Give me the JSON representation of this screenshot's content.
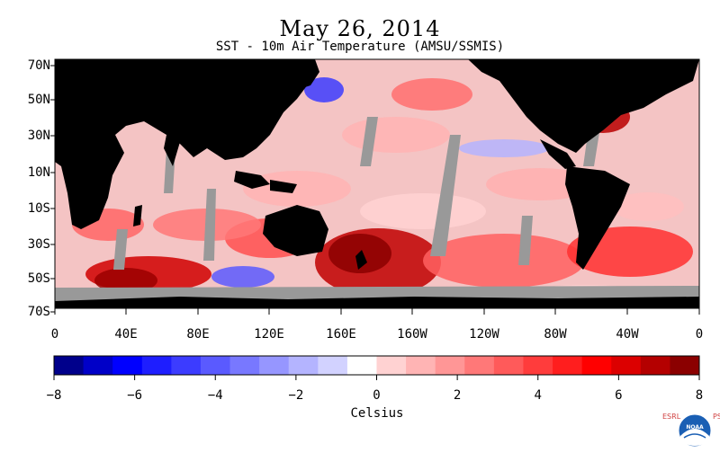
{
  "title": "May 26, 2014",
  "subtitle": "SST - 10m Air Temperature (AMSU/SSMIS)",
  "map": {
    "lat_labels": [
      "70N",
      "50N",
      "30N",
      "10N",
      "10S",
      "30S",
      "50S",
      "70S"
    ],
    "lon_labels": [
      "0",
      "40E",
      "80E",
      "120E",
      "160E",
      "160W",
      "120W",
      "80W",
      "40W",
      "0"
    ]
  },
  "colorbar": {
    "unit": "Celsius",
    "tick_labels": [
      "−8",
      "−6",
      "−4",
      "−2",
      "0",
      "2",
      "4",
      "6",
      "8"
    ],
    "range": [
      -8,
      8
    ],
    "colors": [
      "#00008b",
      "#0000c8",
      "#0000ff",
      "#1e1eff",
      "#3c3cff",
      "#5a5aff",
      "#7878ff",
      "#9696ff",
      "#b4b4ff",
      "#d2d2ff",
      "#ffffff",
      "#ffd2d2",
      "#ffb4b4",
      "#ff9696",
      "#ff7878",
      "#ff5a5a",
      "#ff3c3c",
      "#ff1e1e",
      "#ff0000",
      "#dc0000",
      "#b40000",
      "#8b0000"
    ]
  },
  "colors": {
    "land": "#000000",
    "no_data": "#999999"
  },
  "logo": {
    "left_letters": "ESRL",
    "right_letters": "PSD",
    "emblem": "NOAA"
  }
}
